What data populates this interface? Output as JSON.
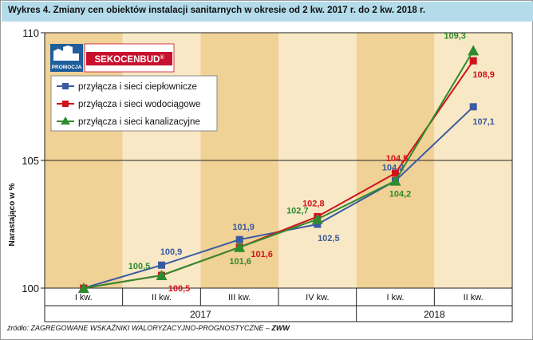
{
  "title": "Wykres 4.  Zmiany cen obiektów instalacji sanitarnych w okresie od 2 kw. 2017 r. do 2 kw. 2018 r.",
  "source": {
    "prefix": "źródło: ZAGREGOWANE WSKAŹNIKI WALORYZACYJNO-PROGNOSTYCZNE – ",
    "abbr": "ZWW"
  },
  "logo": {
    "badge": "PROMOCJA",
    "brand": "SEKOCENBUD",
    "mark": "®"
  },
  "colors": {
    "band_dark": "#f0d196",
    "band_light": "#f9e8c5",
    "frame": "#b3dbe9"
  },
  "chart_data": {
    "type": "line",
    "categories": [
      "I kw.",
      "II kw.",
      "III kw.",
      "IV kw.",
      "I kw.",
      "II kw."
    ],
    "years": [
      {
        "label": "2017",
        "from": 0,
        "to": 3
      },
      {
        "label": "2018",
        "from": 4,
        "to": 5
      }
    ],
    "ylabel": "Narastająco w %",
    "ylim": [
      100,
      110
    ],
    "yticks": [
      100,
      105,
      110
    ],
    "legend_position": "top-left",
    "series": [
      {
        "name": "przyłącza i sieci ciepłownicze",
        "color": "#3a5ba0",
        "marker": "square",
        "points": [
          [
            0.5,
            100.0
          ],
          [
            1.5,
            100.9
          ],
          [
            2.5,
            101.9
          ],
          [
            3.5,
            102.5
          ],
          [
            4.5,
            104.2
          ],
          [
            5.5,
            107.1
          ]
        ],
        "labels": [
          "",
          "100,9",
          "101,9",
          "102,5",
          "104,2",
          "107,1"
        ]
      },
      {
        "name": "przyłącza i sieci wodociągowe",
        "color": "#d0121a",
        "marker": "square",
        "points": [
          [
            0.5,
            100.0
          ],
          [
            1.5,
            100.5
          ],
          [
            2.5,
            101.6
          ],
          [
            3.5,
            102.8
          ],
          [
            4.5,
            104.5
          ],
          [
            5.5,
            108.9
          ]
        ],
        "labels": [
          "",
          "100,5",
          "101,6",
          "102,8",
          "104,5",
          "108,9"
        ]
      },
      {
        "name": "przyłącza i sieci kanalizacyjne",
        "color": "#2e8b2e",
        "marker": "triangle",
        "points": [
          [
            0.5,
            100.0
          ],
          [
            1.5,
            100.5
          ],
          [
            2.5,
            101.6
          ],
          [
            3.5,
            102.7
          ],
          [
            4.5,
            104.2
          ],
          [
            5.5,
            109.3
          ]
        ],
        "labels": [
          "",
          "100,5",
          "101,6",
          "102,7",
          "104,2",
          "109,3"
        ]
      }
    ]
  }
}
